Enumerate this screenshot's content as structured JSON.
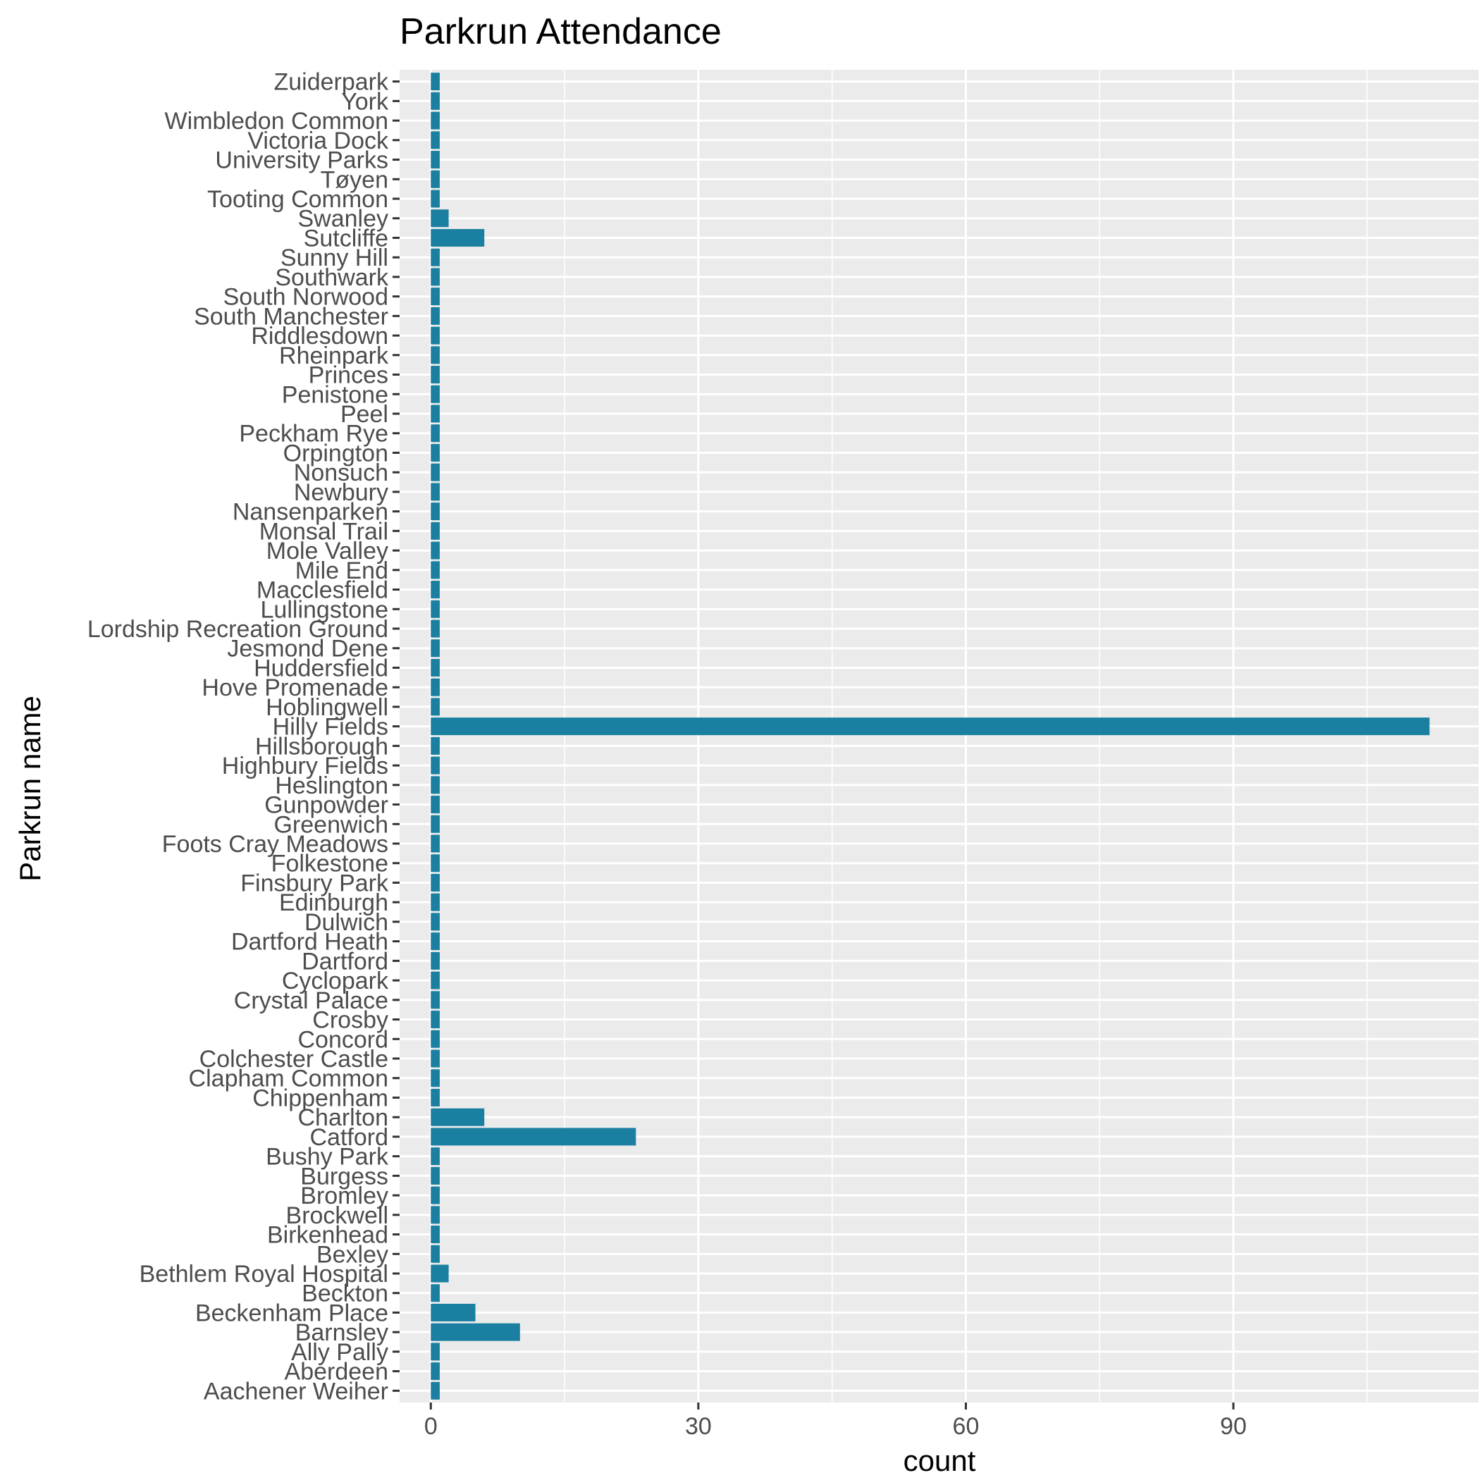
{
  "chart_data": {
    "type": "bar",
    "orientation": "horizontal",
    "title": "Parkrun Attendance",
    "xlabel": "count",
    "ylabel": "Parkrun name",
    "xlim": [
      -3.5,
      117.5
    ],
    "x_ticks": [
      0,
      30,
      60,
      90
    ],
    "x_tick_labels": [
      "0",
      "30",
      "60",
      "90"
    ],
    "grid": true,
    "bar_color": "#1a7fa0",
    "panel_color": "#ebebeb",
    "categories": [
      "Aachener Weiher",
      "Aberdeen",
      "Ally Pally",
      "Barnsley",
      "Beckenham Place",
      "Beckton",
      "Bethlem Royal Hospital",
      "Bexley",
      "Birkenhead",
      "Brockwell",
      "Bromley",
      "Burgess",
      "Bushy Park",
      "Catford",
      "Charlton",
      "Chippenham",
      "Clapham Common",
      "Colchester Castle",
      "Concord",
      "Crosby",
      "Crystal Palace",
      "Cyclopark",
      "Dartford",
      "Dartford Heath",
      "Dulwich",
      "Edinburgh",
      "Finsbury Park",
      "Folkestone",
      "Foots Cray Meadows",
      "Greenwich",
      "Gunpowder",
      "Heslington",
      "Highbury Fields",
      "Hillsborough",
      "Hilly Fields",
      "Hoblingwell",
      "Hove Promenade",
      "Huddersfield",
      "Jesmond Dene",
      "Lordship Recreation Ground",
      "Lullingstone",
      "Macclesfield",
      "Mile End",
      "Mole Valley",
      "Monsal Trail",
      "Nansenparken",
      "Newbury",
      "Nonsuch",
      "Orpington",
      "Peckham Rye",
      "Peel",
      "Penistone",
      "Princes",
      "Rheinpark",
      "Riddlesdown",
      "South Manchester",
      "South Norwood",
      "Southwark",
      "Sunny Hill",
      "Sutcliffe",
      "Swanley",
      "Tooting Common",
      "Tøyen",
      "University Parks",
      "Victoria Dock",
      "Wimbledon Common",
      "York",
      "Zuiderpark"
    ],
    "values": [
      1,
      1,
      1,
      10,
      5,
      1,
      2,
      1,
      1,
      1,
      1,
      1,
      1,
      23,
      6,
      1,
      1,
      1,
      1,
      1,
      1,
      1,
      1,
      1,
      1,
      1,
      1,
      1,
      1,
      1,
      1,
      1,
      1,
      1,
      112,
      1,
      1,
      1,
      1,
      1,
      1,
      1,
      1,
      1,
      1,
      1,
      1,
      1,
      1,
      1,
      1,
      1,
      1,
      1,
      1,
      1,
      1,
      1,
      1,
      6,
      2,
      1,
      1,
      1,
      1,
      1,
      1,
      1
    ]
  }
}
